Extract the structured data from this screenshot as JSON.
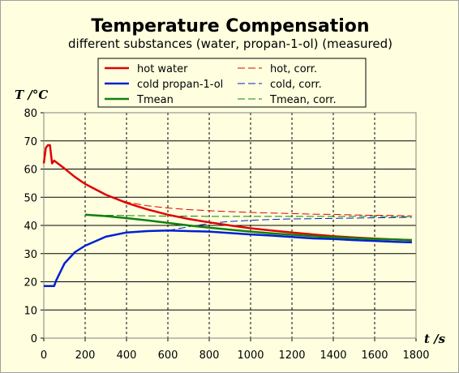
{
  "chart_data": {
    "type": "line",
    "title": "Temperature Compensation",
    "subtitle": "different substances (water, propan-1-ol) (measured)",
    "xlabel": "t /s",
    "ylabel": "T /°C",
    "xlim": [
      0,
      1800
    ],
    "ylim": [
      0,
      80
    ],
    "x_ticks": [
      0,
      200,
      400,
      600,
      800,
      1000,
      1200,
      1400,
      1600,
      1800
    ],
    "y_ticks": [
      0,
      10,
      20,
      30,
      40,
      50,
      60,
      70,
      80
    ],
    "grid": true,
    "legend_position": "top",
    "colors": {
      "background": "#ffffe0",
      "hot": "#e00000",
      "cold": "#0020d0",
      "mean": "#108010"
    },
    "series": [
      {
        "name": "hot water",
        "color": "#e00000",
        "style": "solid",
        "x": [
          0,
          10,
          20,
          30,
          40,
          50,
          100,
          150,
          200,
          300,
          400,
          500,
          600,
          700,
          800,
          900,
          1000,
          1100,
          1200,
          1300,
          1400,
          1500,
          1600,
          1700,
          1780
        ],
        "y": [
          62,
          67.5,
          68.5,
          68.5,
          62,
          63,
          60.2,
          57.2,
          54.7,
          50.9,
          48.0,
          45.7,
          43.8,
          42.3,
          41.1,
          40.0,
          39.0,
          38.2,
          37.5,
          36.8,
          36.2,
          35.7,
          35.3,
          35.0,
          34.8
        ]
      },
      {
        "name": "hot, corr.",
        "color": "#e00000",
        "style": "dashed",
        "x": [
          200,
          300,
          400,
          500,
          600,
          700,
          800,
          900,
          1000,
          1100,
          1200,
          1300,
          1400,
          1500,
          1600,
          1700,
          1780
        ],
        "y": [
          54.7,
          50.9,
          48.3,
          47.0,
          46.2,
          45.6,
          45.2,
          44.9,
          44.6,
          44.4,
          44.2,
          44.0,
          43.9,
          43.7,
          43.6,
          43.5,
          43.4
        ]
      },
      {
        "name": "cold propan-1-ol",
        "color": "#0020d0",
        "style": "solid",
        "x": [
          0,
          50,
          60,
          100,
          150,
          200,
          300,
          400,
          500,
          600,
          700,
          800,
          900,
          1000,
          1100,
          1200,
          1300,
          1400,
          1500,
          1600,
          1700,
          1780
        ],
        "y": [
          18.5,
          18.5,
          20.5,
          26.5,
          30.5,
          32.8,
          36.0,
          37.5,
          38.0,
          38.2,
          38.0,
          37.8,
          37.3,
          36.8,
          36.4,
          35.9,
          35.4,
          35.2,
          34.8,
          34.5,
          34.2,
          34.0
        ]
      },
      {
        "name": "cold, corr.",
        "color": "#0020d0",
        "style": "dashed",
        "x": [
          600,
          700,
          800,
          900,
          1000,
          1100,
          1200,
          1300,
          1400,
          1500,
          1600,
          1700,
          1780
        ],
        "y": [
          38.2,
          39.5,
          40.7,
          41.4,
          41.8,
          42.1,
          42.3,
          42.4,
          42.5,
          42.6,
          42.7,
          42.8,
          42.9
        ]
      },
      {
        "name": "Tmean",
        "color": "#108010",
        "style": "solid",
        "x": [
          200,
          300,
          400,
          500,
          600,
          700,
          800,
          900,
          1000,
          1100,
          1200,
          1300,
          1400,
          1500,
          1600,
          1700,
          1780
        ],
        "y": [
          43.8,
          43.3,
          42.6,
          41.8,
          40.9,
          40.0,
          39.2,
          38.5,
          37.8,
          37.2,
          36.7,
          36.2,
          35.8,
          35.5,
          35.2,
          35.0,
          34.8
        ]
      },
      {
        "name": "Tmean, corr.",
        "color": "#108010",
        "style": "dashed",
        "x": [
          200,
          300,
          400,
          500,
          600,
          700,
          800,
          900,
          1000,
          1100,
          1200,
          1300,
          1400,
          1500,
          1600,
          1700,
          1780
        ],
        "y": [
          43.8,
          43.6,
          43.5,
          43.4,
          43.3,
          43.3,
          43.2,
          43.2,
          43.2,
          43.2,
          43.2,
          43.2,
          43.2,
          43.2,
          43.2,
          43.1,
          43.1
        ]
      }
    ]
  }
}
